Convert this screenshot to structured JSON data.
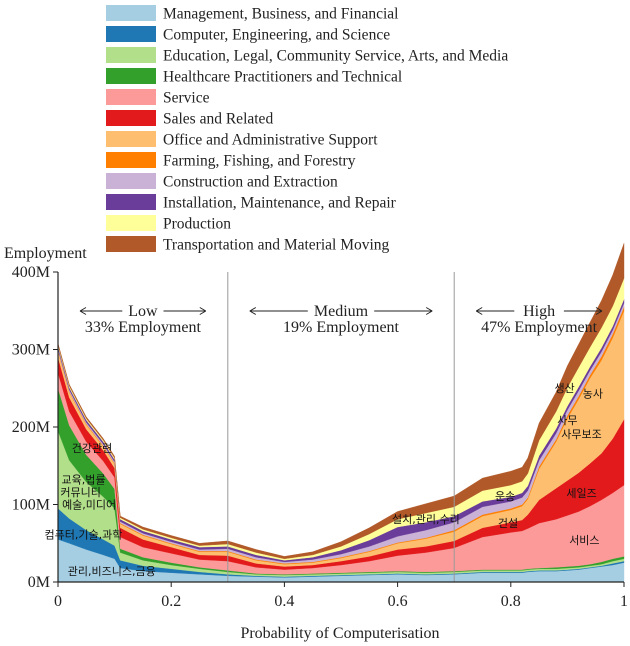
{
  "chart_data": {
    "type": "area",
    "stacked": true,
    "xlabel": "Probability of Computerisation",
    "ylabel": "Employment",
    "xlim": [
      0,
      1
    ],
    "ylim": [
      0,
      400
    ],
    "x_ticks": [
      {
        "value": 0,
        "label": "0"
      },
      {
        "value": 0.2,
        "label": "0.2"
      },
      {
        "value": 0.4,
        "label": "0.4"
      },
      {
        "value": 0.6,
        "label": "0.6"
      },
      {
        "value": 0.8,
        "label": "0.8"
      },
      {
        "value": 1,
        "label": "1"
      }
    ],
    "y_ticks": [
      {
        "value": 0,
        "label": "0M"
      },
      {
        "value": 100,
        "label": "100M"
      },
      {
        "value": 200,
        "label": "200M"
      },
      {
        "value": 300,
        "label": "300M"
      },
      {
        "value": 400,
        "label": "400M"
      }
    ],
    "grid": false,
    "legend_position": "top",
    "x": [
      0,
      0.02,
      0.05,
      0.08,
      0.1,
      0.11,
      0.15,
      0.2,
      0.25,
      0.3,
      0.35,
      0.4,
      0.45,
      0.5,
      0.55,
      0.6,
      0.65,
      0.7,
      0.75,
      0.8,
      0.82,
      0.83,
      0.85,
      0.88,
      0.9,
      0.92,
      0.94,
      0.96,
      0.98,
      1
    ],
    "series": [
      {
        "name": "Management, Business, and Financial",
        "color": "#a6cee3",
        "values": [
          55,
          50,
          42,
          35,
          30,
          18,
          14,
          12,
          10,
          8,
          7,
          6,
          7,
          8,
          9,
          10,
          9,
          10,
          12,
          12,
          12,
          13,
          14,
          14,
          15,
          16,
          18,
          20,
          22,
          25
        ]
      },
      {
        "name": "Computer, Engineering, and Science",
        "color": "#1f78b4",
        "values": [
          40,
          32,
          25,
          20,
          17,
          10,
          7,
          5,
          3,
          2,
          1,
          1,
          1,
          1,
          1,
          1,
          1,
          1,
          1,
          1,
          1,
          1,
          1,
          1,
          1,
          1,
          1,
          1,
          2,
          2
        ]
      },
      {
        "name": "Education, Legal, Community Service, Arts, and Media",
        "color": "#b2df8a",
        "values": [
          100,
          75,
          62,
          55,
          48,
          10,
          7,
          5,
          4,
          3,
          2,
          2,
          2,
          2,
          2,
          2,
          2,
          2,
          2,
          2,
          2,
          2,
          2,
          2,
          2,
          2,
          2,
          2,
          3,
          3
        ]
      },
      {
        "name": "Healthcare Practitioners and Technical",
        "color": "#33a02c",
        "values": [
          55,
          45,
          35,
          30,
          25,
          5,
          4,
          3,
          2,
          2,
          1,
          1,
          1,
          1,
          1,
          1,
          1,
          1,
          1,
          1,
          1,
          1,
          1,
          2,
          2,
          2,
          2,
          3,
          3,
          3
        ]
      },
      {
        "name": "Service",
        "color": "#fb9a99",
        "values": [
          20,
          18,
          17,
          16,
          15,
          15,
          13,
          12,
          10,
          12,
          8,
          6,
          7,
          10,
          14,
          20,
          25,
          30,
          42,
          48,
          50,
          52,
          58,
          62,
          66,
          70,
          75,
          80,
          85,
          92
        ]
      },
      {
        "name": "Sales and Related",
        "color": "#e31a1c",
        "values": [
          20,
          18,
          16,
          14,
          12,
          12,
          10,
          8,
          6,
          7,
          5,
          4,
          4,
          5,
          6,
          8,
          8,
          9,
          12,
          13,
          14,
          18,
          30,
          40,
          45,
          50,
          55,
          60,
          70,
          85
        ]
      },
      {
        "name": "Office and Administrative Support",
        "color": "#fdbf6f",
        "values": [
          8,
          7,
          6,
          5,
          5,
          5,
          5,
          4,
          4,
          5,
          4,
          3,
          3,
          4,
          6,
          8,
          10,
          12,
          15,
          16,
          18,
          20,
          40,
          60,
          80,
          95,
          110,
          120,
          130,
          140
        ]
      },
      {
        "name": "Farming, Fishing, and Forestry",
        "color": "#ff7f00",
        "values": [
          1,
          1,
          1,
          1,
          1,
          1,
          1,
          1,
          1,
          1,
          1,
          1,
          1,
          1,
          1,
          1,
          1,
          2,
          2,
          2,
          2,
          2,
          3,
          3,
          4,
          4,
          4,
          5,
          5,
          5
        ]
      },
      {
        "name": "Construction and Extraction",
        "color": "#cab2d6",
        "values": [
          2,
          2,
          2,
          2,
          2,
          2,
          2,
          2,
          2,
          3,
          3,
          2,
          3,
          4,
          6,
          8,
          10,
          10,
          10,
          9,
          9,
          9,
          8,
          8,
          7,
          7,
          6,
          6,
          5,
          5
        ]
      },
      {
        "name": "Installation, Maintenance, and Repair",
        "color": "#6a3d9a",
        "values": [
          3,
          3,
          3,
          3,
          3,
          3,
          3,
          3,
          3,
          3,
          3,
          2,
          3,
          5,
          8,
          12,
          10,
          8,
          7,
          6,
          6,
          6,
          6,
          6,
          5,
          5,
          5,
          5,
          5,
          5
        ]
      },
      {
        "name": "Production",
        "color": "#ffff99",
        "values": [
          2,
          2,
          2,
          2,
          2,
          2,
          2,
          2,
          2,
          3,
          3,
          2,
          3,
          5,
          8,
          10,
          12,
          12,
          14,
          15,
          15,
          16,
          20,
          22,
          24,
          25,
          25,
          26,
          26,
          27
        ]
      },
      {
        "name": "Transportation and Material Moving",
        "color": "#b15928",
        "values": [
          2,
          2,
          2,
          2,
          2,
          2,
          3,
          3,
          3,
          4,
          4,
          3,
          4,
          6,
          8,
          10,
          12,
          14,
          16,
          18,
          18,
          20,
          22,
          25,
          28,
          30,
          32,
          35,
          40,
          45
        ]
      }
    ],
    "dividers": [
      0.3,
      0.7
    ],
    "regions": [
      {
        "name": "Low",
        "share": "33% Employment"
      },
      {
        "name": "Medium",
        "share": "19% Employment"
      },
      {
        "name": "High",
        "share": "47% Employment"
      }
    ],
    "annotations": [
      {
        "text": "건강관련",
        "x": 0.06,
        "y": 168
      },
      {
        "text": "교육,법률",
        "x": 0.045,
        "y": 127
      },
      {
        "text": "커뮤니티",
        "x": 0.04,
        "y": 111
      },
      {
        "text": "예술,미디어",
        "x": 0.055,
        "y": 95
      },
      {
        "text": "컴퓨터,기술,과학",
        "x": 0.045,
        "y": 56
      },
      {
        "text": "관리,비즈니스,금융",
        "x": 0.095,
        "y": 9
      },
      {
        "text": "설치,관리,수리",
        "x": 0.65,
        "y": 76
      },
      {
        "text": "운송",
        "x": 0.79,
        "y": 106
      },
      {
        "text": "건설",
        "x": 0.795,
        "y": 71
      },
      {
        "text": "생산",
        "x": 0.895,
        "y": 245
      },
      {
        "text": "농사",
        "x": 0.945,
        "y": 238
      },
      {
        "text": "사무",
        "x": 0.9,
        "y": 204
      },
      {
        "text": "사무보조",
        "x": 0.925,
        "y": 186
      },
      {
        "text": "세일즈",
        "x": 0.925,
        "y": 110
      },
      {
        "text": "서비스",
        "x": 0.93,
        "y": 49
      }
    ]
  }
}
